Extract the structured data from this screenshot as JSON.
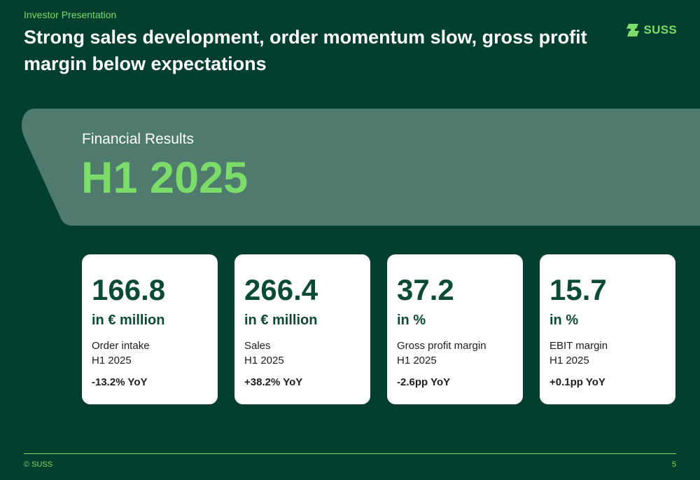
{
  "header": {
    "kicker": "Investor Presentation",
    "title": "Strong sales development, order momentum slow, gross profit margin below expectations",
    "logo_text": "SUSS"
  },
  "hero": {
    "subtitle": "Financial Results",
    "headline": "H1 2025"
  },
  "kpis": [
    {
      "value": "166.8",
      "unit": "in € million",
      "label": "Order intake",
      "period": "H1 2025",
      "delta": "-13.2% YoY"
    },
    {
      "value": "266.4",
      "unit": "in € million",
      "label": "Sales",
      "period": "H1 2025",
      "delta": "+38.2% YoY"
    },
    {
      "value": "37.2",
      "unit": "in %",
      "label": "Gross profit margin",
      "period": "H1 2025",
      "delta": "-2.6pp YoY"
    },
    {
      "value": "15.7",
      "unit": "in %",
      "label": "EBIT margin",
      "period": "H1 2025",
      "delta": "+0.1pp YoY"
    }
  ],
  "footer": {
    "copyright": "© SUSS",
    "page_number": "5"
  },
  "colors": {
    "background": "#003f2d",
    "accent": "#7cdc6a",
    "band": "#4f7a6e",
    "card": "#ffffff",
    "card_text": "#0b4a36"
  }
}
